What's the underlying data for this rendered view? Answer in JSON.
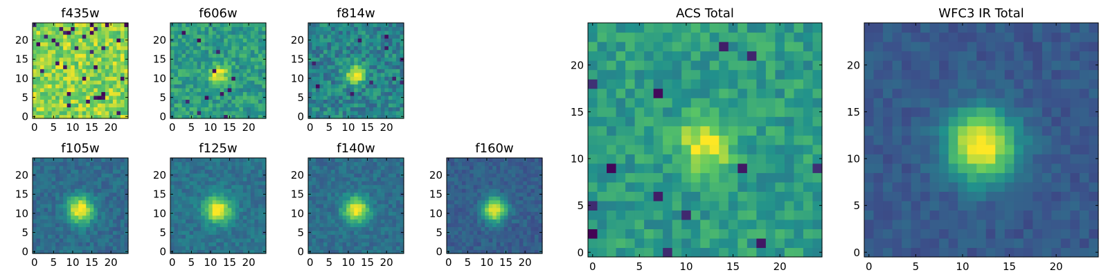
{
  "figure": {
    "background": "#ffffff",
    "colormap": "viridis",
    "colormap_stops": [
      "#440154",
      "#3b528b",
      "#21918c",
      "#5ec962",
      "#fde725"
    ]
  },
  "chart_data": [
    {
      "type": "heatmap",
      "title": "f435w",
      "grid_size": 25,
      "xlim": [
        -0.5,
        24.5
      ],
      "ylim": [
        -0.5,
        24.5
      ],
      "xticks": [
        0,
        5,
        10,
        15,
        20
      ],
      "yticks": [
        0,
        5,
        10,
        15,
        20
      ],
      "xtick_labels": [
        "0",
        "5",
        "10",
        "15",
        "20"
      ],
      "ytick_labels": [
        "0",
        "5",
        "10",
        "15",
        "20"
      ],
      "source": {
        "center": [
          12,
          11
        ],
        "peak": 0.0,
        "sigma": 3,
        "background": 0.82,
        "noise": 0.17,
        "dropout_rate": 0.05
      }
    },
    {
      "type": "heatmap",
      "title": "f606w",
      "grid_size": 25,
      "xlim": [
        -0.5,
        24.5
      ],
      "ylim": [
        -0.5,
        24.5
      ],
      "xticks": [
        0,
        5,
        10,
        15,
        20
      ],
      "yticks": [
        0,
        5,
        10,
        15,
        20
      ],
      "xtick_labels": [
        "0",
        "5",
        "10",
        "15",
        "20"
      ],
      "ytick_labels": [
        "0",
        "5",
        "10",
        "15",
        "20"
      ],
      "source": {
        "center": [
          12,
          11
        ],
        "peak": 0.45,
        "sigma": 1.8,
        "background": 0.55,
        "noise": 0.14,
        "dropout_rate": 0.02
      }
    },
    {
      "type": "heatmap",
      "title": "f814w",
      "grid_size": 25,
      "xlim": [
        -0.5,
        24.5
      ],
      "ylim": [
        -0.5,
        24.5
      ],
      "xticks": [
        0,
        5,
        10,
        15,
        20
      ],
      "yticks": [
        0,
        5,
        10,
        15,
        20
      ],
      "xtick_labels": [
        "0",
        "5",
        "10",
        "15",
        "20"
      ],
      "ytick_labels": [
        "0",
        "5",
        "10",
        "15",
        "20"
      ],
      "source": {
        "center": [
          12,
          11
        ],
        "peak": 0.55,
        "sigma": 1.8,
        "background": 0.45,
        "noise": 0.15,
        "dropout_rate": 0.02
      }
    },
    {
      "type": "heatmap",
      "title": "f105w",
      "grid_size": 25,
      "xlim": [
        -0.5,
        24.5
      ],
      "ylim": [
        -0.5,
        24.5
      ],
      "xticks": [
        0,
        5,
        10,
        15,
        20
      ],
      "yticks": [
        0,
        5,
        10,
        15,
        20
      ],
      "xtick_labels": [
        "0",
        "5",
        "10",
        "15",
        "20"
      ],
      "ytick_labels": [
        "0",
        "5",
        "10",
        "15",
        "20"
      ],
      "source": {
        "center": [
          12,
          11
        ],
        "peak": 0.7,
        "sigma": 2.4,
        "background": 0.35,
        "noise": 0.08,
        "dropout_rate": 0.0
      }
    },
    {
      "type": "heatmap",
      "title": "f125w",
      "grid_size": 25,
      "xlim": [
        -0.5,
        24.5
      ],
      "ylim": [
        -0.5,
        24.5
      ],
      "xticks": [
        0,
        5,
        10,
        15,
        20
      ],
      "yticks": [
        0,
        5,
        10,
        15,
        20
      ],
      "xtick_labels": [
        "0",
        "5",
        "10",
        "15",
        "20"
      ],
      "ytick_labels": [
        "0",
        "5",
        "10",
        "15",
        "20"
      ],
      "source": {
        "center": [
          12,
          11
        ],
        "peak": 0.65,
        "sigma": 2.5,
        "background": 0.38,
        "noise": 0.08,
        "dropout_rate": 0.0
      }
    },
    {
      "type": "heatmap",
      "title": "f140w",
      "grid_size": 25,
      "xlim": [
        -0.5,
        24.5
      ],
      "ylim": [
        -0.5,
        24.5
      ],
      "xticks": [
        0,
        5,
        10,
        15,
        20
      ],
      "yticks": [
        0,
        5,
        10,
        15,
        20
      ],
      "xtick_labels": [
        "0",
        "5",
        "10",
        "15",
        "20"
      ],
      "ytick_labels": [
        "0",
        "5",
        "10",
        "15",
        "20"
      ],
      "source": {
        "center": [
          12,
          11
        ],
        "peak": 0.68,
        "sigma": 2.3,
        "background": 0.36,
        "noise": 0.08,
        "dropout_rate": 0.0
      }
    },
    {
      "type": "heatmap",
      "title": "f160w",
      "grid_size": 25,
      "xlim": [
        -0.5,
        24.5
      ],
      "ylim": [
        -0.5,
        24.5
      ],
      "xticks": [
        0,
        5,
        10,
        15,
        20
      ],
      "yticks": [
        0,
        5,
        10,
        15,
        20
      ],
      "xtick_labels": [
        "0",
        "5",
        "10",
        "15",
        "20"
      ],
      "ytick_labels": [
        "0",
        "5",
        "10",
        "15",
        "20"
      ],
      "source": {
        "center": [
          12,
          11
        ],
        "peak": 0.72,
        "sigma": 2.2,
        "background": 0.3,
        "noise": 0.07,
        "dropout_rate": 0.0
      }
    },
    {
      "type": "heatmap",
      "title": "ACS Total",
      "grid_size": 25,
      "xlim": [
        -0.5,
        24.5
      ],
      "ylim": [
        -0.5,
        24.5
      ],
      "xticks": [
        0,
        5,
        10,
        15,
        20
      ],
      "yticks": [
        0,
        5,
        10,
        15,
        20
      ],
      "xtick_labels": [
        "0",
        "5",
        "10",
        "15",
        "20"
      ],
      "ytick_labels": [
        "0",
        "5",
        "10",
        "15",
        "20"
      ],
      "source": {
        "center": [
          12,
          11.5
        ],
        "peak": 0.45,
        "sigma": 2.0,
        "background": 0.55,
        "noise": 0.12,
        "dropout_rate": 0.03
      }
    },
    {
      "type": "heatmap",
      "title": "WFC3 IR Total",
      "grid_size": 25,
      "xlim": [
        -0.5,
        24.5
      ],
      "ylim": [
        -0.5,
        24.5
      ],
      "xticks": [
        0,
        5,
        10,
        15,
        20
      ],
      "yticks": [
        0,
        5,
        10,
        15,
        20
      ],
      "xtick_labels": [
        "0",
        "5",
        "10",
        "15",
        "20"
      ],
      "ytick_labels": [
        "0",
        "5",
        "10",
        "15",
        "20"
      ],
      "source": {
        "center": [
          12,
          11.5
        ],
        "peak": 0.78,
        "sigma": 2.6,
        "background": 0.28,
        "noise": 0.06,
        "dropout_rate": 0.0
      }
    }
  ]
}
